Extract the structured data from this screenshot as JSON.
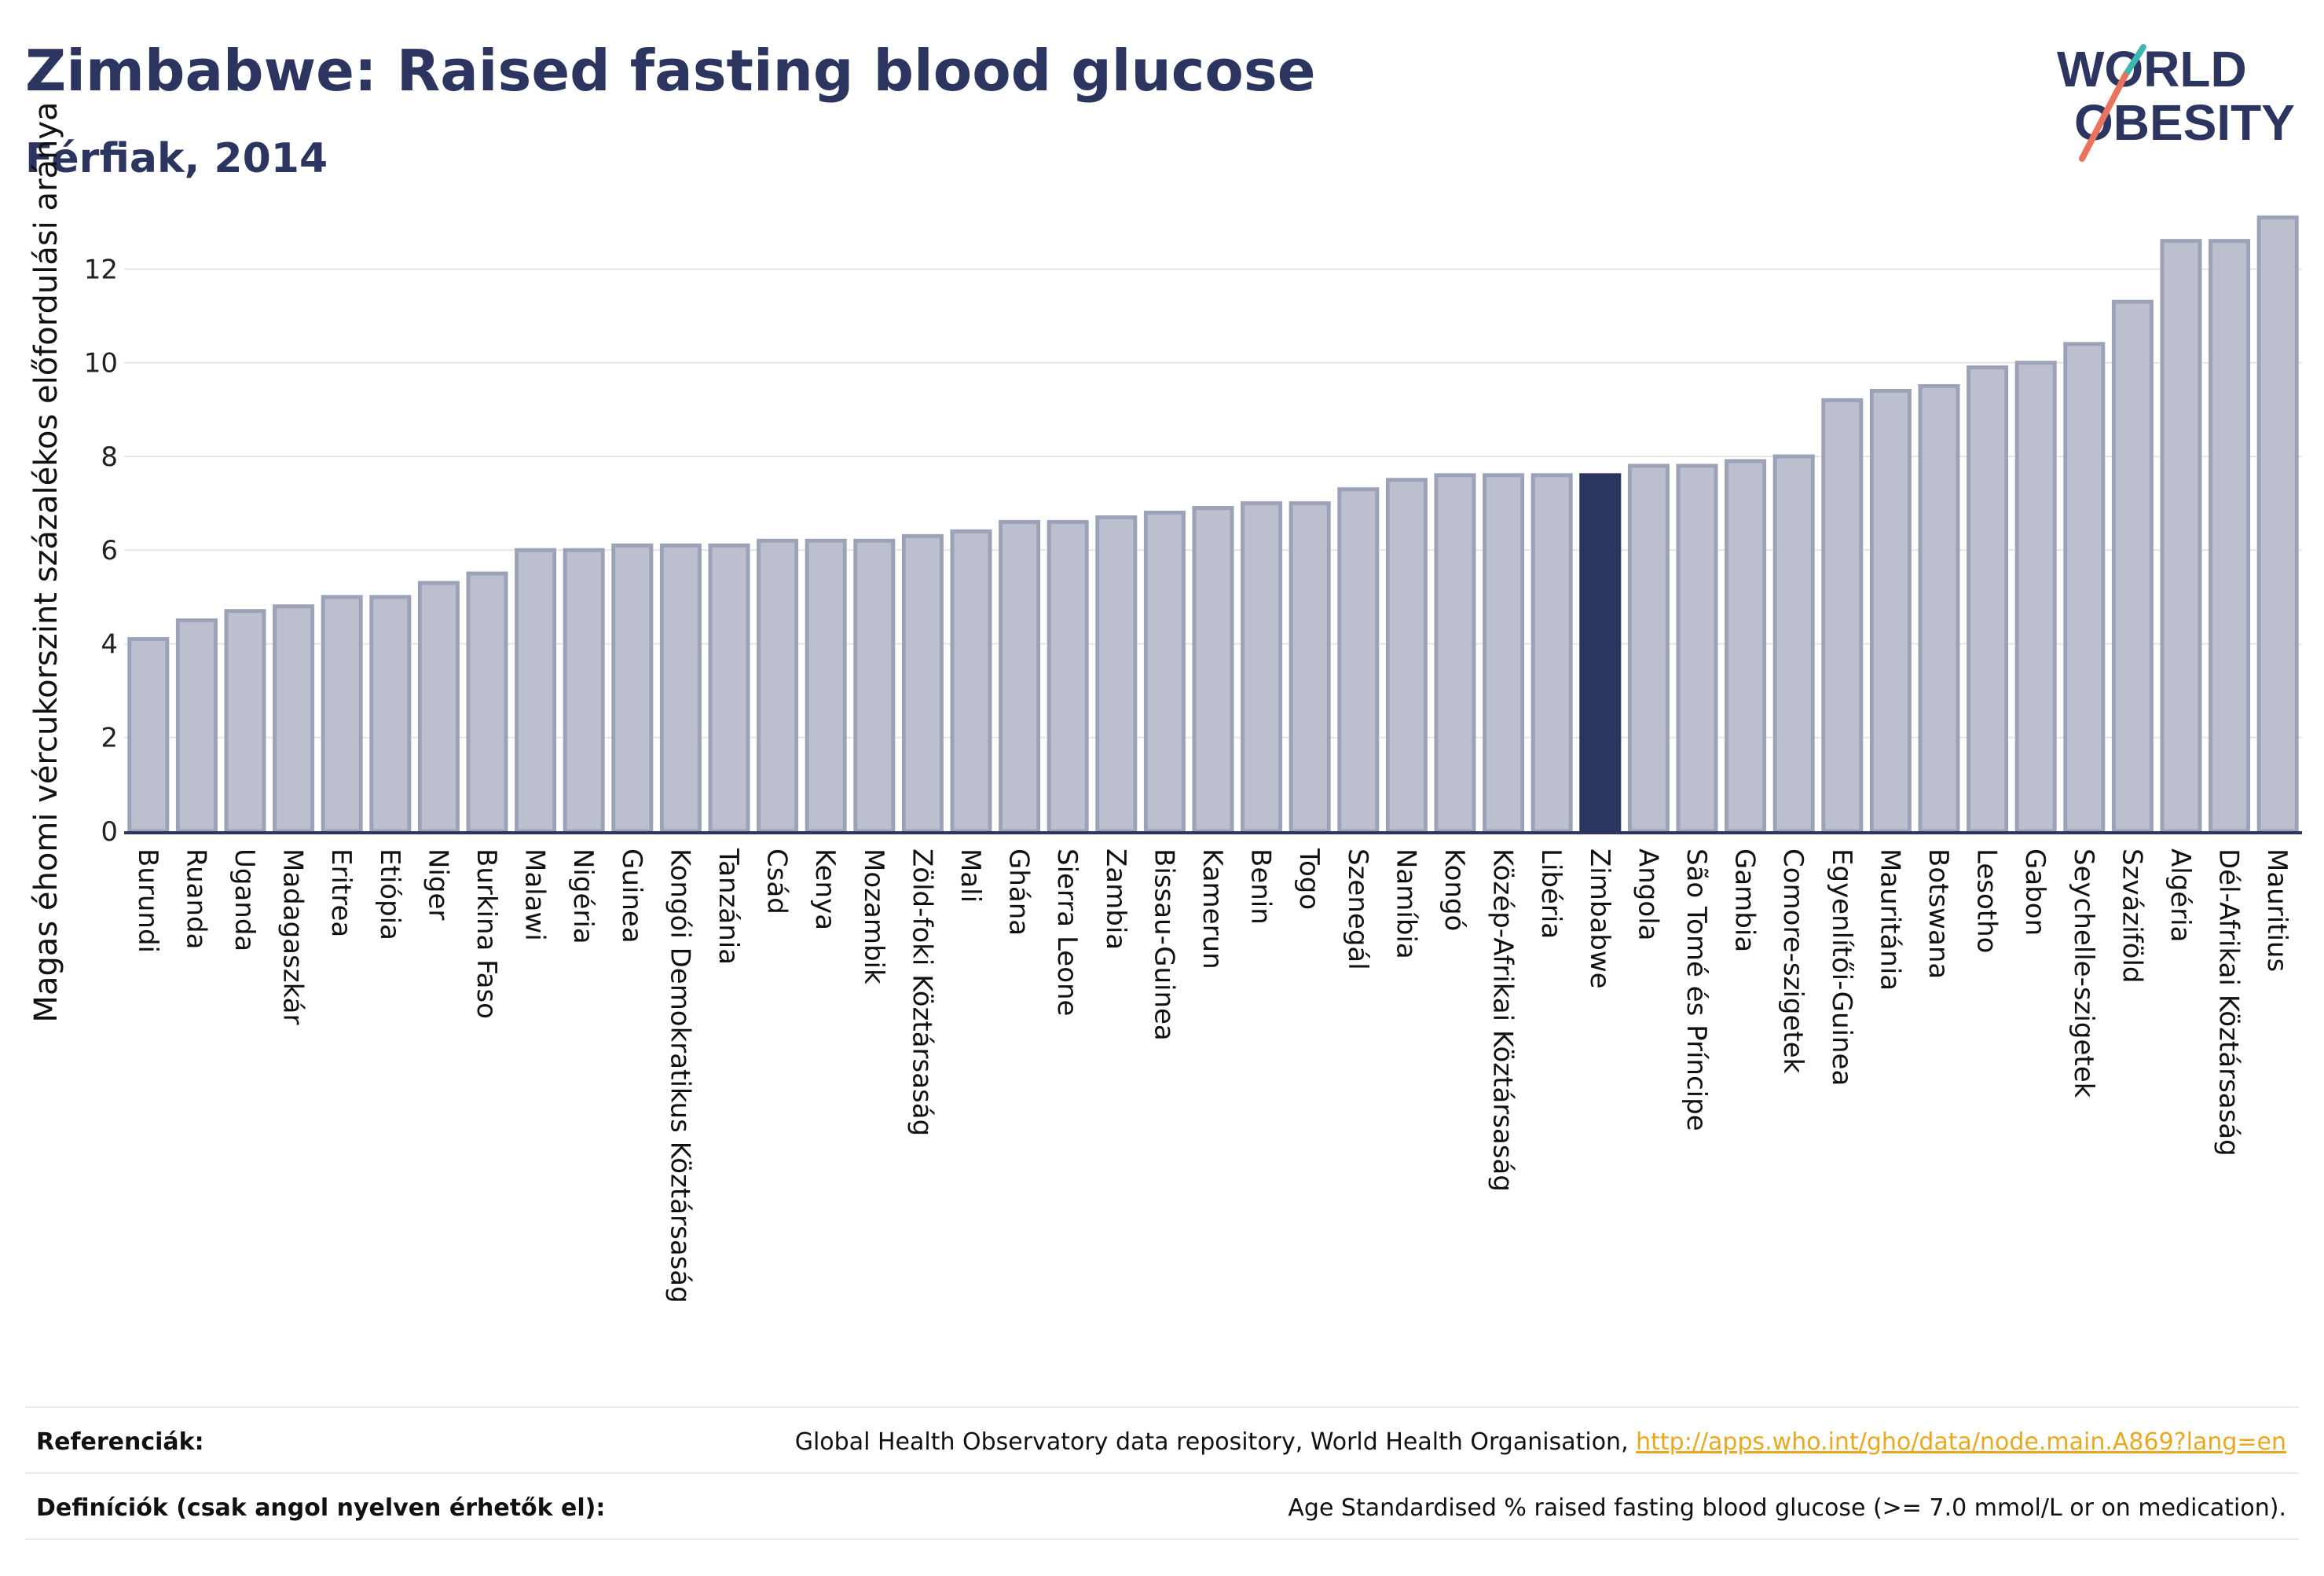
{
  "header": {
    "title": "Zimbabwe: Raised fasting blood glucose",
    "subtitle": "Férfiak, 2014",
    "logo_line1": "WORLD",
    "logo_line2": "OBESITY"
  },
  "chart_data": {
    "type": "bar",
    "title": "Zimbabwe: Raised fasting blood glucose",
    "subtitle": "Férfiak, 2014",
    "xlabel": "",
    "ylabel": "Magas éhomi vércukorszint százalékos előfordulási aránya",
    "ylim": [
      0,
      13.5
    ],
    "yticks": [
      0,
      2,
      4,
      6,
      8,
      10,
      12
    ],
    "grid": true,
    "highlight": "Zimbabwe",
    "colors": {
      "bar": "#bcc0ce",
      "bar_border": "#9ca3b9",
      "highlight": "#2b3560",
      "grid": "#e5e5e5",
      "axis": "#2b3560"
    },
    "categories": [
      "Burundi",
      "Ruanda",
      "Uganda",
      "Madagaszkár",
      "Eritrea",
      "Etiópia",
      "Niger",
      "Burkina Faso",
      "Malawi",
      "Nigéria",
      "Guinea",
      "Kongói Demokratikus Köztársaság",
      "Tanzánia",
      "Csád",
      "Kenya",
      "Mozambik",
      "Zöld-foki Köztársaság",
      "Mali",
      "Ghána",
      "Sierra Leone",
      "Zambia",
      "Bissau-Guinea",
      "Kamerun",
      "Benin",
      "Togo",
      "Szenegál",
      "Namíbia",
      "Kongó",
      "Közép-Afrikai Köztársaság",
      "Libéria",
      "Zimbabwe",
      "Angola",
      "São Tomé és Príncipe",
      "Gambia",
      "Comore-szigetek",
      "Egyenlítői-Guinea",
      "Mauritánia",
      "Botswana",
      "Lesotho",
      "Gabon",
      "Seychelle-szigetek",
      "Szváziföld",
      "Algéria",
      "Dél-Afrikai Köztársaság",
      "Mauritius"
    ],
    "values": [
      4.1,
      4.5,
      4.7,
      4.8,
      5.0,
      5.0,
      5.3,
      5.5,
      6.0,
      6.0,
      6.1,
      6.1,
      6.1,
      6.2,
      6.2,
      6.2,
      6.3,
      6.4,
      6.6,
      6.6,
      6.7,
      6.8,
      6.9,
      7.0,
      7.0,
      7.3,
      7.5,
      7.6,
      7.6,
      7.6,
      7.6,
      7.8,
      7.8,
      7.9,
      8.0,
      9.2,
      9.4,
      9.5,
      9.9,
      10.0,
      10.4,
      11.3,
      12.6,
      12.6,
      13.1
    ]
  },
  "footer": {
    "ref_label": "Referenciák:",
    "ref_text": "Global Health Observatory data repository, World Health Organisation, ",
    "ref_link": "http://apps.who.int/gho/data/node.main.A869?lang=en",
    "def_label": "Definíciók (csak angol nyelven érhetők el):",
    "def_text": "Age Standardised % raised fasting blood glucose (>= 7.0 mmol/L or on medication)."
  }
}
